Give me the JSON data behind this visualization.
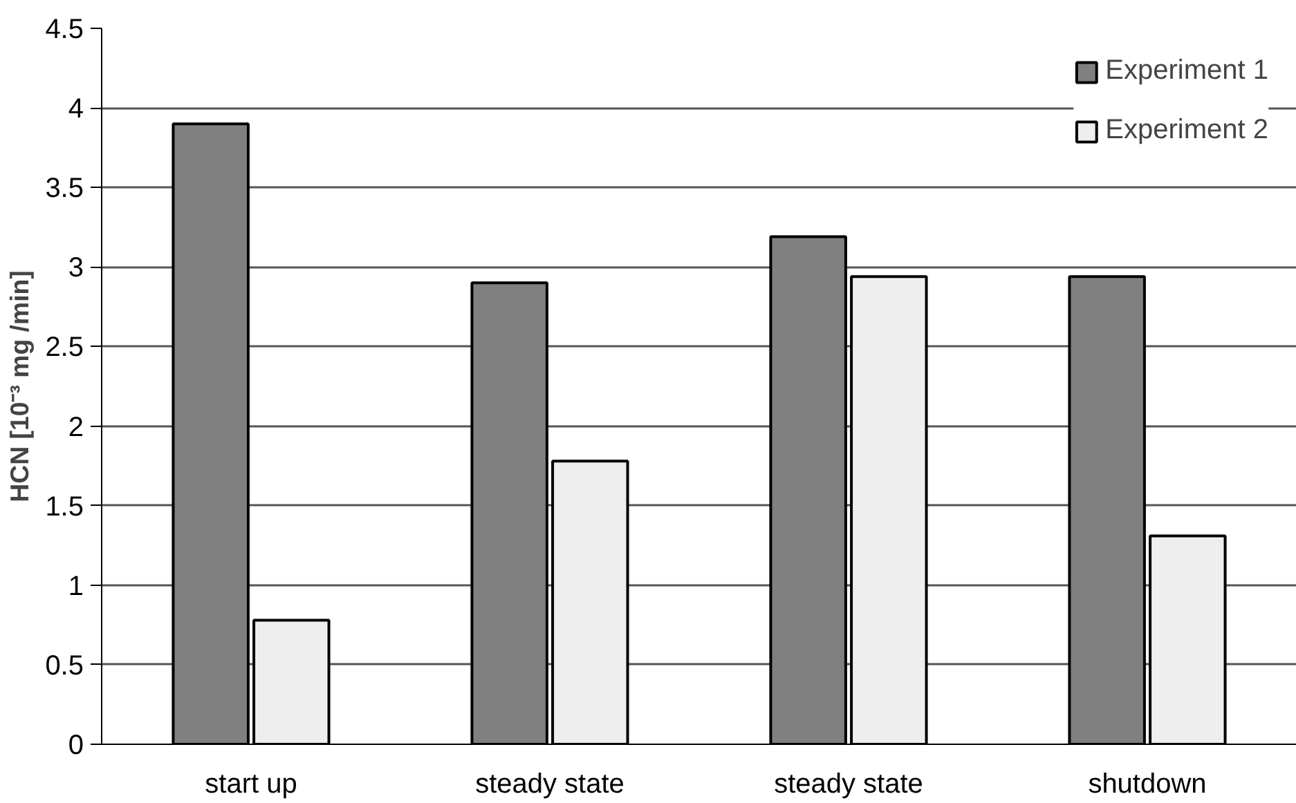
{
  "chart_data": {
    "type": "bar",
    "ylabel": "HCN [10⁻³ mg /min]",
    "categories": [
      "start up",
      "steady state",
      "steady state",
      "shutdown"
    ],
    "series": [
      {
        "name": "Experiment 1",
        "color": "#808080",
        "values": [
          3.9,
          2.9,
          3.19,
          2.94
        ]
      },
      {
        "name": "Experiment 2",
        "color": "#eeeeee",
        "values": [
          0.78,
          1.78,
          2.94,
          1.31
        ]
      }
    ],
    "ylim": [
      0,
      4.5
    ],
    "yticks": [
      0,
      0.5,
      1,
      1.5,
      2,
      2.5,
      3,
      3.5,
      4,
      4.5
    ],
    "grid": "y",
    "legend": "top right"
  }
}
